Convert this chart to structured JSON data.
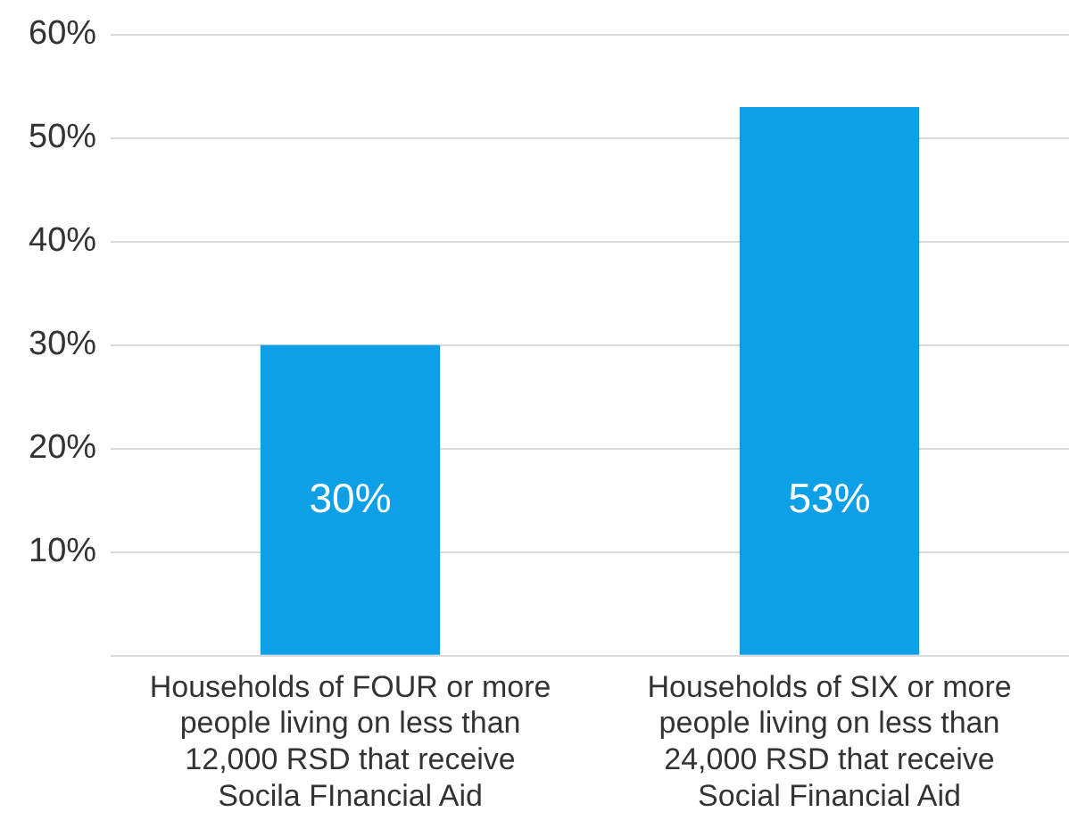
{
  "chart_data": {
    "type": "bar",
    "categories": [
      "Households of FOUR or more people living on less than 12,000 RSD that receive Socila FInancial Aid",
      "Households of SIX or more people living on less than 24,000 RSD that receive Social Financial Aid"
    ],
    "values": [
      30,
      53
    ],
    "color": "#0ea0e6",
    "value_labels": [
      "30%",
      "53%"
    ],
    "ylim": [
      0,
      60
    ],
    "yticks": [
      {
        "value": 0,
        "label": null
      },
      {
        "value": 10,
        "label": "10%"
      },
      {
        "value": 20,
        "label": "20%"
      },
      {
        "value": 30,
        "label": "30%"
      },
      {
        "value": 40,
        "label": "40%"
      },
      {
        "value": 50,
        "label": "50%"
      },
      {
        "value": 60,
        "label": "60%"
      }
    ],
    "grid": "y",
    "legend": false
  }
}
